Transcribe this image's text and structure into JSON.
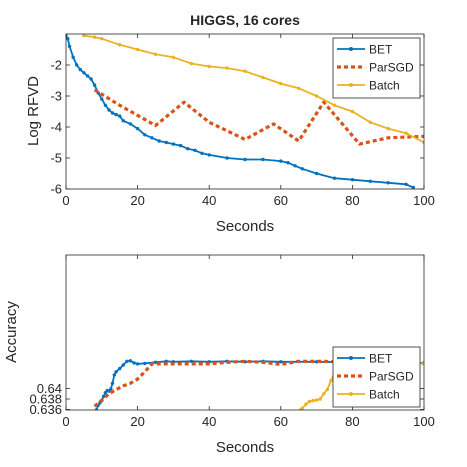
{
  "colors": {
    "BET": "#0072BD",
    "ParSGD": "#D95319",
    "Batch": "#EDB120",
    "axis": "#262626"
  },
  "chart_data": [
    {
      "type": "line",
      "title": "HIGGS, 16 cores",
      "xlabel": "Seconds",
      "ylabel": "Log RFVD",
      "xlim": [
        0,
        100
      ],
      "ylim": [
        -6,
        -1
      ],
      "xticks": [
        0,
        20,
        40,
        60,
        80,
        100
      ],
      "yticks": [
        -6,
        -5,
        -4,
        -3,
        -2
      ],
      "ytick_labels": [
        "-6",
        "-5",
        "-4",
        "-3",
        "-2"
      ],
      "grid": false,
      "legend_position": "top-right",
      "series": [
        {
          "name": "BET",
          "style": "solid-markers",
          "x": [
            0,
            0.5,
            1,
            2,
            3,
            4,
            5,
            6,
            7,
            8,
            9,
            10,
            11,
            12,
            13,
            14,
            15,
            16,
            18,
            20,
            22,
            24,
            26,
            28,
            30,
            32,
            34,
            36,
            38,
            40,
            45,
            50,
            55,
            60,
            62,
            64,
            66,
            70,
            75,
            80,
            85,
            90,
            95,
            97
          ],
          "y": [
            -1.05,
            -1.15,
            -1.4,
            -1.75,
            -2.0,
            -2.15,
            -2.25,
            -2.35,
            -2.45,
            -2.65,
            -2.9,
            -3.1,
            -3.3,
            -3.45,
            -3.55,
            -3.6,
            -3.65,
            -3.8,
            -3.9,
            -4.05,
            -4.25,
            -4.35,
            -4.45,
            -4.5,
            -4.55,
            -4.6,
            -4.7,
            -4.75,
            -4.85,
            -4.9,
            -5.0,
            -5.05,
            -5.05,
            -5.1,
            -5.15,
            -5.25,
            -5.35,
            -5.5,
            -5.65,
            -5.7,
            -5.75,
            -5.8,
            -5.85,
            -5.95
          ]
        },
        {
          "name": "ParSGD",
          "style": "dotted",
          "x": [
            8,
            15,
            25,
            33,
            40,
            50,
            58,
            65,
            72,
            82,
            90,
            100
          ],
          "y": [
            -2.8,
            -3.3,
            -3.95,
            -3.2,
            -3.85,
            -4.4,
            -3.9,
            -4.45,
            -3.2,
            -4.55,
            -4.35,
            -4.3
          ]
        },
        {
          "name": "Batch",
          "style": "solid-markers",
          "x": [
            5,
            8,
            10,
            15,
            20,
            25,
            30,
            35,
            40,
            45,
            50,
            55,
            60,
            65,
            70,
            75,
            80,
            85,
            90,
            95,
            100
          ],
          "y": [
            -1.05,
            -1.1,
            -1.15,
            -1.35,
            -1.5,
            -1.65,
            -1.75,
            -1.95,
            -2.05,
            -2.1,
            -2.2,
            -2.4,
            -2.6,
            -2.75,
            -3.0,
            -3.3,
            -3.5,
            -3.85,
            -4.05,
            -4.2,
            -4.5
          ]
        }
      ]
    },
    {
      "type": "line",
      "title": "",
      "xlabel": "Seconds",
      "ylabel": "Accuracy",
      "xlim": [
        0,
        100
      ],
      "ylim": [
        0.6359,
        0.6655
      ],
      "xticks": [
        0,
        20,
        40,
        60,
        80,
        100
      ],
      "yticks": [
        0.636,
        0.638,
        0.64
      ],
      "ytick_labels": [
        "0.636",
        "0.638",
        "0.64"
      ],
      "grid": false,
      "legend_position": "bottom-right",
      "series": [
        {
          "name": "BET",
          "style": "solid-markers",
          "x": [
            8.5,
            9,
            9.5,
            10,
            10.5,
            11,
            11.5,
            12,
            12.5,
            13,
            13.5,
            14,
            15,
            16,
            17,
            18,
            19,
            20,
            22,
            25,
            28,
            30,
            35,
            40,
            45,
            50,
            55,
            60,
            70,
            80,
            90,
            100
          ],
          "y": [
            0.6359,
            0.6368,
            0.6373,
            0.6377,
            0.6385,
            0.6392,
            0.6396,
            0.6395,
            0.6399,
            0.641,
            0.6426,
            0.6432,
            0.6438,
            0.6445,
            0.6452,
            0.6453,
            0.6449,
            0.6447,
            0.6448,
            0.645,
            0.6452,
            0.6451,
            0.6452,
            0.6451,
            0.6452,
            0.6451,
            0.6452,
            0.6451,
            0.6451,
            0.645,
            0.6449,
            0.6449
          ]
        },
        {
          "name": "ParSGD",
          "style": "dotted",
          "x": [
            8,
            10,
            12,
            14,
            16,
            18,
            20,
            22,
            24,
            30,
            40,
            45,
            50,
            55,
            60,
            65,
            70,
            80,
            90,
            100
          ],
          "y": [
            0.6366,
            0.6378,
            0.639,
            0.6398,
            0.6405,
            0.641,
            0.6418,
            0.6432,
            0.6447,
            0.6447,
            0.6447,
            0.645,
            0.6452,
            0.645,
            0.6446,
            0.6452,
            0.6452,
            0.6451,
            0.645,
            0.6448
          ]
        },
        {
          "name": "Batch",
          "style": "solid-markers",
          "x": [
            65.5,
            66,
            67,
            68,
            69,
            70,
            71,
            72,
            73,
            74,
            75,
            76,
            77,
            78,
            80,
            82,
            84,
            86,
            88,
            90,
            92,
            94,
            96,
            98,
            100
          ],
          "y": [
            0.6359,
            0.6362,
            0.637,
            0.6375,
            0.6377,
            0.6378,
            0.638,
            0.639,
            0.6398,
            0.6415,
            0.643,
            0.6443,
            0.6442,
            0.644,
            0.6443,
            0.6444,
            0.6441,
            0.6442,
            0.6444,
            0.6441,
            0.6445,
            0.6445,
            0.6447,
            0.6448,
            0.6448
          ]
        }
      ]
    }
  ]
}
